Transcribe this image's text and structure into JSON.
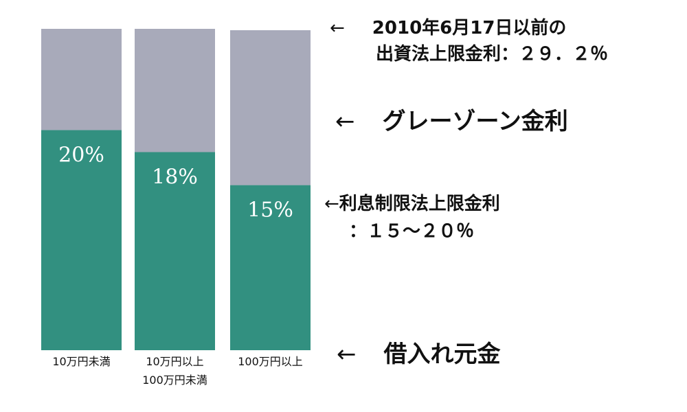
{
  "chart_data": {
    "type": "bar",
    "stacked": true,
    "categories": [
      [
        "10万円未満"
      ],
      [
        "10万円以上",
        "100万円未満"
      ],
      [
        "100万円以上"
      ]
    ],
    "series": [
      {
        "values": [
          20,
          18,
          15
        ],
        "labels": [
          "20%",
          "18%",
          "15%"
        ],
        "color": "#329080"
      },
      {
        "values": [
          9.2,
          11.2,
          14.2
        ],
        "color": "#a8aaba"
      }
    ],
    "total_cap": 29.2,
    "ylim": [
      0,
      30
    ]
  },
  "annotations": {
    "top_cap": {
      "arrow": "←",
      "line1": "2010年6月17日以前の",
      "line2": "出資法上限金利：２９．２％"
    },
    "gray_zone": {
      "arrow": "←",
      "text": "グレーゾーン金利"
    },
    "interest_limit": {
      "arrow": "←",
      "line1": "利息制限法上限金利",
      "line2": "：１５～２０％"
    },
    "principal": {
      "arrow": "←",
      "text": "借入れ元金"
    }
  },
  "colors": {
    "green": "#329080",
    "gray": "#a8aaba"
  }
}
